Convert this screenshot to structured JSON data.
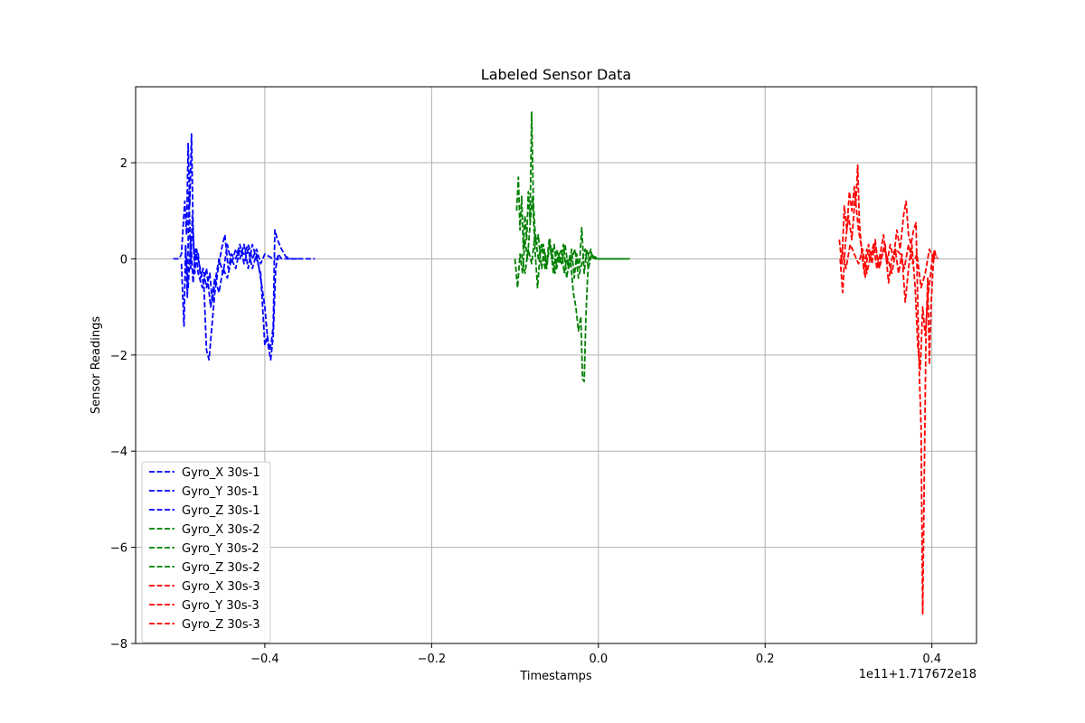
{
  "chart_data": {
    "type": "line",
    "title": "Labeled Sensor Data",
    "xlabel": "Timestamps",
    "ylabel": "Sensor Readings",
    "x_offset_label": "1e11+1.717672e18",
    "xlim": [
      -0.555,
      0.4535
    ],
    "ylim": [
      -8.0,
      3.58
    ],
    "x_ticks": [
      -0.4,
      -0.2,
      0.0,
      0.2,
      0.4
    ],
    "x_tick_labels": [
      "−0.4",
      "−0.2",
      "0.0",
      "0.2",
      "0.4"
    ],
    "y_ticks": [
      -8,
      -6,
      -4,
      -2,
      0,
      2
    ],
    "y_tick_labels": [
      "−8",
      "−6",
      "−4",
      "−2",
      "0",
      "2"
    ],
    "grid": true,
    "legend_position": "lower-left",
    "series": [
      {
        "name": "Gyro_X 30s-1",
        "color": "#0000ff",
        "x": [
          -0.51,
          -0.503,
          -0.5,
          -0.498,
          -0.496,
          -0.494,
          -0.492,
          -0.49,
          -0.488,
          -0.486,
          -0.484,
          -0.482,
          -0.48,
          -0.477,
          -0.474,
          -0.47,
          -0.466,
          -0.463,
          -0.46,
          -0.455,
          -0.45,
          -0.445,
          -0.44,
          -0.435,
          -0.43,
          -0.425,
          -0.42,
          -0.415,
          -0.41,
          -0.405,
          -0.4,
          -0.397,
          -0.394,
          -0.392,
          -0.39,
          -0.388,
          -0.385,
          -0.38,
          -0.375,
          -0.37,
          -0.36,
          -0.35,
          -0.34
        ],
        "y": [
          0.0,
          0.0,
          0.1,
          0.7,
          1.2,
          0.5,
          2.4,
          1.1,
          2.6,
          0.6,
          -0.3,
          0.2,
          0.1,
          -0.4,
          -0.2,
          -0.6,
          -0.3,
          -0.9,
          -0.5,
          0.0,
          -0.3,
          0.3,
          -0.1,
          0.2,
          0.0,
          0.3,
          -0.2,
          0.3,
          0.0,
          -0.3,
          -1.8,
          -1.6,
          -1.9,
          -1.7,
          -1.4,
          0.6,
          0.4,
          0.2,
          0.05,
          0.0,
          0.0,
          0.0,
          0.0
        ]
      },
      {
        "name": "Gyro_Y 30s-1",
        "color": "#0000ff",
        "x": [
          -0.5,
          -0.497,
          -0.495,
          -0.493,
          -0.491,
          -0.489,
          -0.487,
          -0.485,
          -0.482,
          -0.479,
          -0.476,
          -0.473,
          -0.47,
          -0.467,
          -0.464,
          -0.46,
          -0.456,
          -0.452,
          -0.448,
          -0.444,
          -0.44,
          -0.435,
          -0.43,
          -0.425,
          -0.42,
          -0.415,
          -0.41,
          -0.405,
          -0.4,
          -0.396,
          -0.393,
          -0.39,
          -0.387,
          -0.384,
          -0.38,
          -0.37,
          -0.36
        ],
        "y": [
          -0.1,
          -1.4,
          0.3,
          -0.8,
          1.4,
          -0.2,
          0.9,
          0.1,
          0.2,
          -0.1,
          -0.3,
          -0.6,
          -1.9,
          -2.1,
          -1.5,
          -0.7,
          -0.2,
          0.2,
          0.5,
          -0.2,
          0.1,
          0.0,
          0.3,
          -0.1,
          0.2,
          -0.2,
          0.1,
          -0.4,
          -1.0,
          -1.8,
          -2.1,
          -1.6,
          -0.2,
          0.1,
          0.0,
          0.0,
          0.0
        ]
      },
      {
        "name": "Gyro_Z 30s-1",
        "color": "#0000ff",
        "x": [
          -0.495,
          -0.492,
          -0.489,
          -0.486,
          -0.483,
          -0.48,
          -0.475,
          -0.47,
          -0.465,
          -0.46,
          -0.455,
          -0.45,
          -0.445,
          -0.44,
          -0.435,
          -0.43,
          -0.425,
          -0.42,
          -0.415,
          -0.41,
          -0.405,
          -0.4,
          -0.39,
          -0.38
        ],
        "y": [
          0.2,
          -0.6,
          0.4,
          -0.5,
          0.2,
          -0.3,
          -0.6,
          -0.2,
          -1.0,
          -0.4,
          -0.7,
          -0.2,
          -0.4,
          0.0,
          -0.2,
          0.2,
          0.1,
          0.3,
          0.0,
          0.2,
          -0.1,
          0.1,
          0.0,
          0.0
        ]
      },
      {
        "name": "Gyro_X 30s-2",
        "color": "#008000",
        "x": [
          -0.098,
          -0.096,
          -0.094,
          -0.092,
          -0.09,
          -0.088,
          -0.086,
          -0.084,
          -0.082,
          -0.08,
          -0.078,
          -0.076,
          -0.074,
          -0.072,
          -0.07,
          -0.068,
          -0.065,
          -0.062,
          -0.059,
          -0.056,
          -0.053,
          -0.05,
          -0.047,
          -0.044,
          -0.041,
          -0.038,
          -0.035,
          -0.032,
          -0.029,
          -0.026,
          -0.023,
          -0.02,
          -0.017,
          -0.014,
          -0.011,
          -0.008,
          -0.005,
          0.0,
          0.01,
          0.02,
          0.03,
          0.038
        ],
        "y": [
          1.0,
          1.7,
          0.6,
          1.3,
          0.2,
          0.9,
          0.4,
          1.4,
          0.8,
          3.05,
          1.2,
          0.6,
          0.3,
          0.5,
          0.1,
          -0.2,
          0.2,
          -0.1,
          0.4,
          0.0,
          0.3,
          -0.2,
          0.1,
          0.2,
          -0.3,
          0.0,
          -0.1,
          0.2,
          -0.4,
          0.1,
          -0.2,
          0.65,
          -0.3,
          0.2,
          0.0,
          0.05,
          0.0,
          0.0,
          0.0,
          0.0,
          0.0,
          0.0
        ]
      },
      {
        "name": "Gyro_Y 30s-2",
        "color": "#008000",
        "x": [
          -0.1,
          -0.097,
          -0.094,
          -0.091,
          -0.088,
          -0.085,
          -0.082,
          -0.079,
          -0.076,
          -0.073,
          -0.07,
          -0.066,
          -0.062,
          -0.058,
          -0.054,
          -0.05,
          -0.046,
          -0.042,
          -0.038,
          -0.034,
          -0.03,
          -0.027,
          -0.024,
          -0.021,
          -0.019,
          -0.017,
          -0.015,
          -0.013,
          -0.011,
          -0.009,
          -0.007,
          -0.005,
          0.0,
          0.01,
          0.02,
          0.03
        ],
        "y": [
          0.0,
          -0.6,
          0.1,
          -0.3,
          0.4,
          0.0,
          0.7,
          1.3,
          0.2,
          -0.6,
          0.1,
          0.3,
          -0.2,
          0.4,
          -0.3,
          0.2,
          -0.1,
          0.3,
          -0.4,
          0.1,
          -0.7,
          -1.0,
          -1.5,
          -1.2,
          -2.5,
          -2.55,
          -1.2,
          -0.4,
          0.1,
          0.2,
          0.0,
          0.05,
          0.0,
          0.0,
          0.0,
          0.0
        ]
      },
      {
        "name": "Gyro_Z 30s-2",
        "color": "#008000",
        "x": [
          -0.092,
          -0.088,
          -0.084,
          -0.08,
          -0.076,
          -0.072,
          -0.068,
          -0.064,
          -0.06,
          -0.056,
          -0.052,
          -0.048,
          -0.044,
          -0.04,
          -0.036,
          -0.032,
          -0.028,
          -0.024,
          -0.02,
          -0.016,
          -0.012,
          -0.008,
          -0.004,
          0.0,
          0.01,
          0.02,
          0.035
        ],
        "y": [
          0.1,
          -0.3,
          0.2,
          -0.1,
          0.5,
          0.0,
          0.3,
          -0.2,
          0.1,
          0.2,
          -0.3,
          0.1,
          -0.1,
          0.3,
          -0.2,
          0.0,
          0.2,
          -0.4,
          -0.1,
          0.2,
          -0.2,
          0.1,
          0.0,
          0.0,
          0.0,
          0.0,
          0.0
        ]
      },
      {
        "name": "Gyro_X 30s-3",
        "color": "#ff0000",
        "x": [
          0.289,
          0.292,
          0.295,
          0.298,
          0.301,
          0.304,
          0.307,
          0.309,
          0.311,
          0.313,
          0.316,
          0.319,
          0.322,
          0.326,
          0.33,
          0.334,
          0.338,
          0.342,
          0.346,
          0.35,
          0.354,
          0.358,
          0.362,
          0.366,
          0.369,
          0.372,
          0.375,
          0.378,
          0.381,
          0.383,
          0.385,
          0.387,
          0.389,
          0.391,
          0.393,
          0.395,
          0.397,
          0.399,
          0.401,
          0.403,
          0.405,
          0.407
        ],
        "y": [
          0.4,
          -0.1,
          1.1,
          0.6,
          1.4,
          1.0,
          1.5,
          1.2,
          1.95,
          0.8,
          0.1,
          -0.3,
          0.2,
          0.0,
          0.3,
          -0.2,
          0.1,
          0.5,
          -0.1,
          0.3,
          0.0,
          0.6,
          0.2,
          0.9,
          1.2,
          0.5,
          0.3,
          0.6,
          0.75,
          -0.9,
          -2.4,
          -3.5,
          -7.4,
          -4.3,
          -1.5,
          -0.4,
          -2.2,
          -1.0,
          -0.3,
          0.2,
          0.05,
          0.0
        ]
      },
      {
        "name": "Gyro_Y 30s-3",
        "color": "#ff0000",
        "x": [
          0.29,
          0.293,
          0.296,
          0.3,
          0.304,
          0.308,
          0.312,
          0.316,
          0.32,
          0.324,
          0.328,
          0.332,
          0.336,
          0.34,
          0.344,
          0.348,
          0.352,
          0.356,
          0.36,
          0.364,
          0.368,
          0.372,
          0.376,
          0.38,
          0.383,
          0.386,
          0.389,
          0.392,
          0.395,
          0.398,
          0.401,
          0.404
        ],
        "y": [
          0.0,
          -0.7,
          0.3,
          0.9,
          0.4,
          1.3,
          0.6,
          0.2,
          -0.4,
          0.3,
          -0.1,
          0.4,
          -0.2,
          0.1,
          0.3,
          -0.5,
          0.0,
          0.2,
          -0.3,
          0.1,
          -0.9,
          -0.2,
          0.3,
          -0.6,
          -1.8,
          -2.3,
          -1.0,
          -1.6,
          -0.8,
          -0.4,
          0.1,
          0.0
        ]
      },
      {
        "name": "Gyro_Z 30s-3",
        "color": "#ff0000",
        "x": [
          0.292,
          0.297,
          0.302,
          0.307,
          0.312,
          0.317,
          0.322,
          0.327,
          0.332,
          0.337,
          0.342,
          0.347,
          0.352,
          0.357,
          0.362,
          0.367,
          0.372,
          0.377,
          0.382,
          0.387,
          0.392,
          0.397,
          0.402,
          0.406
        ],
        "y": [
          0.2,
          -0.2,
          0.3,
          0.1,
          -0.1,
          0.2,
          -0.3,
          0.1,
          0.3,
          -0.2,
          0.2,
          0.0,
          -0.3,
          0.2,
          0.1,
          -0.2,
          0.3,
          -0.1,
          0.1,
          -0.6,
          -0.3,
          0.2,
          0.0,
          0.05
        ]
      }
    ]
  }
}
